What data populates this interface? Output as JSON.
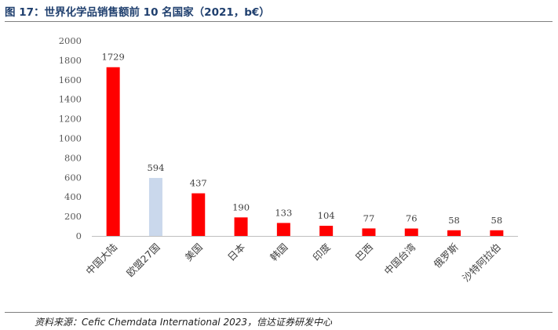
{
  "title": "图 17：世界化学品销售额前 10 名国家（2021，b€）",
  "source": "资料来源：Cefic Chemdata International 2023，信达证券研发中心",
  "chart_data": {
    "type": "bar",
    "categories": [
      "中国大陆",
      "欧盟27国",
      "美国",
      "日本",
      "韩国",
      "印度",
      "巴西",
      "中国台湾",
      "俄罗斯",
      "沙特阿拉伯"
    ],
    "values": [
      1729,
      594,
      437,
      190,
      133,
      104,
      77,
      76,
      58,
      58
    ],
    "data_labels": [
      "1729",
      "594",
      "437",
      "190",
      "133",
      "104",
      "77",
      "76",
      "58",
      "58"
    ],
    "bar_colors": [
      "#ff0000",
      "#cad8ec",
      "#ff0000",
      "#ff0000",
      "#ff0000",
      "#ff0000",
      "#ff0000",
      "#ff0000",
      "#ff0000",
      "#ff0000"
    ],
    "yticks": [
      "0",
      "200",
      "400",
      "600",
      "800",
      "1000",
      "1200",
      "1400",
      "1600",
      "1800",
      "2000"
    ],
    "ylim": [
      0,
      2000
    ],
    "grid": false,
    "legend": "none"
  }
}
